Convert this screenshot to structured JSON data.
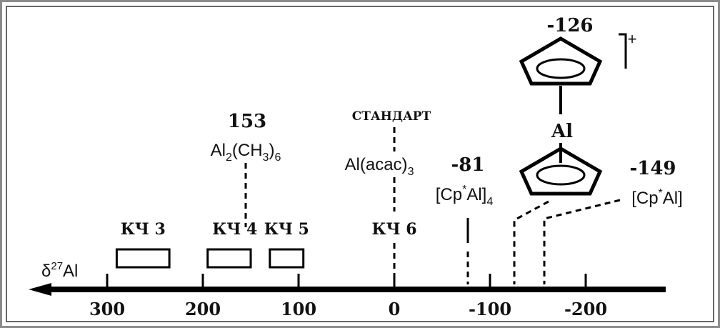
{
  "axis": {
    "label_delta": "δ",
    "label_sup": "27",
    "label_element": "Al",
    "ticks": [
      {
        "value": 300,
        "label": "300"
      },
      {
        "value": 200,
        "label": "200"
      },
      {
        "value": 100,
        "label": "100"
      },
      {
        "value": 0,
        "label": "0"
      },
      {
        "value": -100,
        "label": "-100"
      },
      {
        "value": -200,
        "label": "-200"
      }
    ]
  },
  "coordination_ranges": [
    {
      "label": "КЧ 3",
      "from": 290,
      "to": 235
    },
    {
      "label": "КЧ 4",
      "from": 195,
      "to": 150
    },
    {
      "label": "КЧ 5",
      "from": 130,
      "to": 95
    }
  ],
  "markers": {
    "al2me6": {
      "value": 153,
      "value_label": "153",
      "formula_main": "Al",
      "formula_sub1": "2",
      "formula_mid": "(CH",
      "formula_sub2": "3",
      "formula_end": ")",
      "formula_sub3": "6"
    },
    "standard": {
      "value": 0,
      "caption": "СТАНДАРТ",
      "formula_main": "Al(acac)",
      "formula_sub": "3",
      "cn_label": "КЧ 6"
    },
    "cp_al4": {
      "value": -81,
      "value_label": "-81",
      "formula_open": "[Cp",
      "formula_star": "*",
      "formula_close": "Al]",
      "formula_sub": "4"
    },
    "cp2al": {
      "value": -126,
      "value_label": "-126",
      "charge": "+",
      "metal": "Al"
    },
    "cp_al": {
      "value": -149,
      "value_label": "-149",
      "formula_open": "[Cp",
      "formula_star": "*",
      "formula_close": "Al]"
    }
  }
}
